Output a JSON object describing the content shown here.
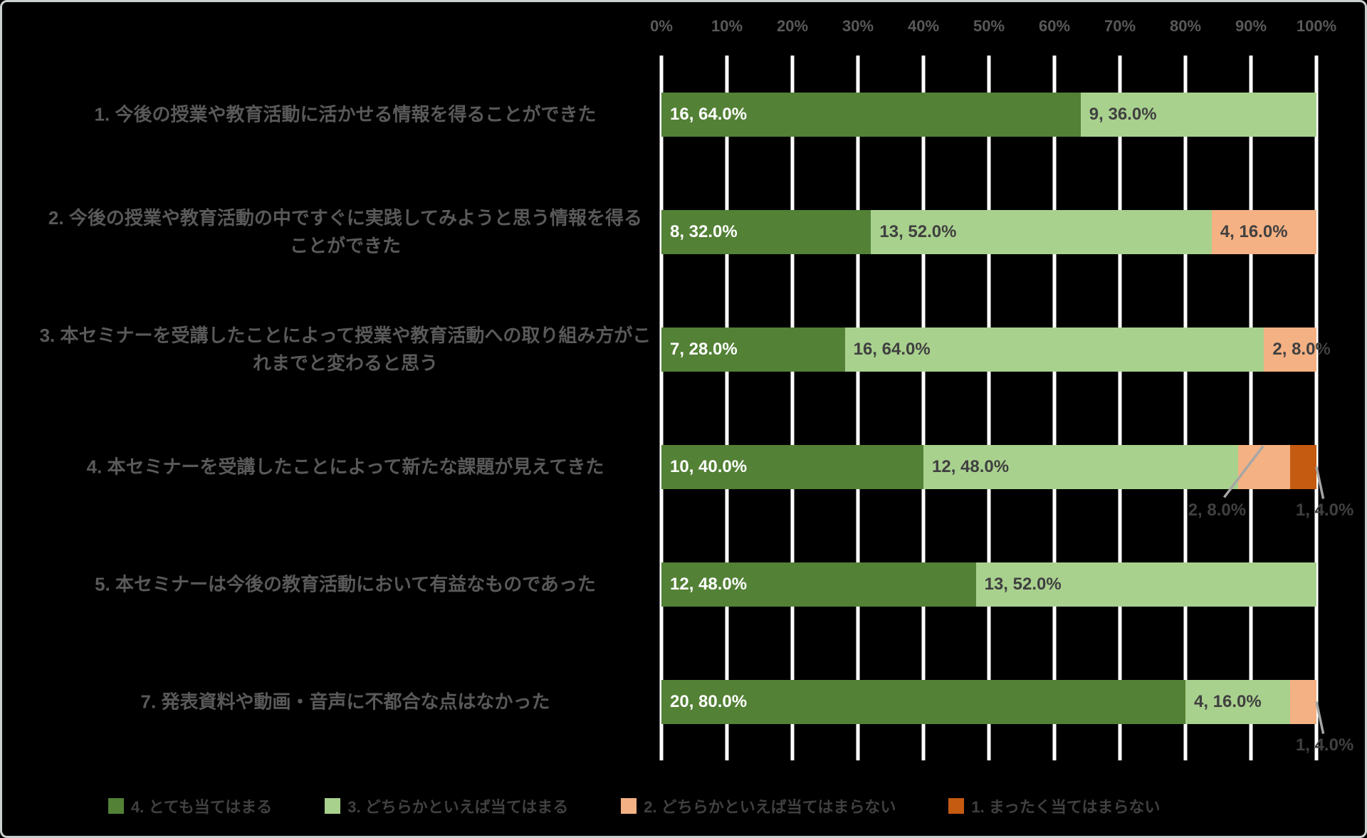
{
  "colors": {
    "background": "#000000",
    "gridline": "#ffffff",
    "axis_text": "#595959",
    "category_text": "#595959",
    "data_label_dark": "#404040",
    "data_label_light": "#ffffff",
    "leader_line": "#a6a6a6",
    "frame_border": "#ccd1d1"
  },
  "chart_data": {
    "type": "bar",
    "stacked": true,
    "orientation": "horizontal",
    "x_axis": {
      "ticks": [
        "0%",
        "10%",
        "20%",
        "30%",
        "40%",
        "50%",
        "60%",
        "70%",
        "80%",
        "90%",
        "100%"
      ],
      "min": 0,
      "max": 100,
      "grid": true,
      "position": "top"
    },
    "series": [
      {
        "name": "4. とても当てはまる",
        "color": "#538135",
        "label_color": "#ffffff"
      },
      {
        "name": "3. どちらかといえば当てはまる",
        "color": "#a9d18e",
        "label_color": "#404040"
      },
      {
        "name": "2. どちらかといえば当てはまらない",
        "color": "#f4b183",
        "label_color": "#404040"
      },
      {
        "name": "1. まったく当てはまらない",
        "color": "#c55a11",
        "label_color": "#404040"
      }
    ],
    "rows": [
      {
        "category": "1. 今後の授業や教育活動に活かせる情報を得ることができた",
        "segments": [
          {
            "series": 0,
            "count": 16,
            "pct": 64.0,
            "label": "16, 64.0%"
          },
          {
            "series": 1,
            "count": 9,
            "pct": 36.0,
            "label": "9, 36.0%"
          }
        ]
      },
      {
        "category": "2. 今後の授業や教育活動の中ですぐに実践してみようと思う情報を得ることができた",
        "segments": [
          {
            "series": 0,
            "count": 8,
            "pct": 32.0,
            "label": "8, 32.0%"
          },
          {
            "series": 1,
            "count": 13,
            "pct": 52.0,
            "label": "13, 52.0%"
          },
          {
            "series": 2,
            "count": 4,
            "pct": 16.0,
            "label": "4, 16.0%"
          }
        ]
      },
      {
        "category": "3. 本セミナーを受講したことによって授業や教育活動への取り組み方がこれまでと変わると思う",
        "segments": [
          {
            "series": 0,
            "count": 7,
            "pct": 28.0,
            "label": "7, 28.0%"
          },
          {
            "series": 1,
            "count": 16,
            "pct": 64.0,
            "label": "16, 64.0%"
          },
          {
            "series": 2,
            "count": 2,
            "pct": 8.0,
            "label": "2, 8.0%"
          }
        ]
      },
      {
        "category": "4. 本セミナーを受講したことによって新たな課題が見えてきた",
        "segments": [
          {
            "series": 0,
            "count": 10,
            "pct": 40.0,
            "label": "10, 40.0%"
          },
          {
            "series": 1,
            "count": 12,
            "pct": 48.0,
            "label": "12, 48.0%"
          },
          {
            "series": 2,
            "count": 2,
            "pct": 8.0,
            "label": "2, 8.0%",
            "callout": true
          },
          {
            "series": 3,
            "count": 1,
            "pct": 4.0,
            "label": "1, 4.0%",
            "callout": true
          }
        ]
      },
      {
        "category": "5. 本セミナーは今後の教育活動において有益なものであった",
        "segments": [
          {
            "series": 0,
            "count": 12,
            "pct": 48.0,
            "label": "12, 48.0%"
          },
          {
            "series": 1,
            "count": 13,
            "pct": 52.0,
            "label": "13, 52.0%"
          }
        ]
      },
      {
        "category": "7. 発表資料や動画・音声に不都合な点はなかった",
        "segments": [
          {
            "series": 0,
            "count": 20,
            "pct": 80.0,
            "label": "20, 80.0%"
          },
          {
            "series": 1,
            "count": 4,
            "pct": 16.0,
            "label": "4, 16.0%"
          },
          {
            "series": 2,
            "count": 1,
            "pct": 4.0,
            "label": "1, 4.0%",
            "callout": true
          }
        ]
      }
    ],
    "legend": {
      "position": "bottom",
      "items": [
        {
          "label": "4. とても当てはまる",
          "color": "#538135"
        },
        {
          "label": "3. どちらかといえば当てはまる",
          "color": "#a9d18e"
        },
        {
          "label": "2. どちらかといえば当てはまらない",
          "color": "#f4b183"
        },
        {
          "label": "1. まったく当てはまらない",
          "color": "#c55a11"
        }
      ]
    }
  }
}
